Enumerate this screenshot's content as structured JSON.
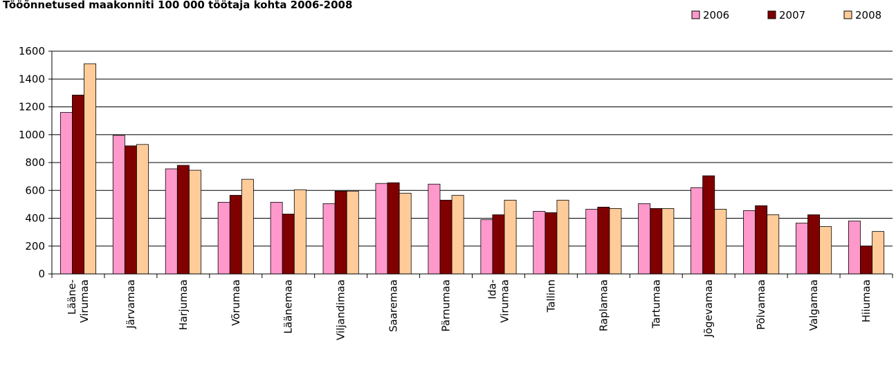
{
  "chart_data": {
    "type": "bar",
    "title": "Tööõnnetused maakonniti 100 000 töötaja kohta 2006-2008",
    "categories": [
      "Lääne-Virumaa",
      "Järvamaa",
      "Harjumaa",
      "Võrumaa",
      "Läänemaa",
      "Viljandimaa",
      "Saaremaa",
      "Pärnumaa",
      "Ida-Virumaa",
      "Tallinn",
      "Raplamaa",
      "Tartumaa",
      "Jõgevamaa",
      "Põlvamaa",
      "Valgamaa",
      "Hiiumaa"
    ],
    "series": [
      {
        "name": "2006",
        "color": "#ff99cc",
        "values": [
          1160,
          995,
          755,
          515,
          515,
          505,
          650,
          645,
          390,
          450,
          465,
          505,
          620,
          455,
          365,
          380
        ]
      },
      {
        "name": "2007",
        "color": "#800000",
        "values": [
          1285,
          920,
          780,
          565,
          430,
          595,
          655,
          530,
          425,
          440,
          480,
          470,
          705,
          490,
          425,
          200
        ]
      },
      {
        "name": "2008",
        "color": "#ffcc99",
        "values": [
          1510,
          930,
          745,
          680,
          605,
          595,
          580,
          565,
          530,
          530,
          470,
          470,
          465,
          425,
          340,
          305
        ]
      }
    ],
    "ylim": [
      0,
      1600
    ],
    "yticks": [
      0,
      200,
      400,
      600,
      800,
      1000,
      1200,
      1400,
      1600
    ],
    "grid": true,
    "legend": "top-right"
  }
}
